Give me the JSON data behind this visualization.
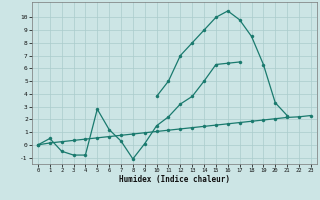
{
  "bg_color": "#cce5e5",
  "grid_color": "#aacccc",
  "line_color": "#1a7a6e",
  "xlabel": "Humidex (Indice chaleur)",
  "x_values": [
    0,
    1,
    2,
    3,
    4,
    5,
    6,
    7,
    8,
    9,
    10,
    11,
    12,
    13,
    14,
    15,
    16,
    17,
    18,
    19,
    20,
    21,
    22,
    23
  ],
  "line_straight_y": [
    0.0,
    0.15,
    0.25,
    0.35,
    0.45,
    0.55,
    0.65,
    0.75,
    0.85,
    0.95,
    1.05,
    1.15,
    1.25,
    1.35,
    1.45,
    1.55,
    1.65,
    1.75,
    1.85,
    1.95,
    2.05,
    2.15,
    2.2,
    2.3
  ],
  "line_mid_y": [
    0.0,
    0.5,
    -0.5,
    -0.8,
    -0.8,
    2.8,
    1.2,
    0.3,
    -1.1,
    0.1,
    1.5,
    2.2,
    3.2,
    3.8,
    5.0,
    6.3,
    6.4,
    6.5,
    null,
    null,
    null,
    null,
    null,
    null
  ],
  "line_top_y": [
    null,
    null,
    null,
    null,
    null,
    null,
    null,
    null,
    null,
    null,
    3.8,
    5.0,
    7.0,
    8.0,
    9.0,
    10.0,
    10.5,
    9.8,
    8.5,
    6.3,
    3.3,
    2.3,
    null,
    null
  ],
  "ylim": [
    -1.5,
    11.2
  ],
  "xlim": [
    -0.5,
    23.5
  ],
  "yticks": [
    -1,
    0,
    1,
    2,
    3,
    4,
    5,
    6,
    7,
    8,
    9,
    10
  ],
  "xticks": [
    0,
    1,
    2,
    3,
    4,
    5,
    6,
    7,
    8,
    9,
    10,
    11,
    12,
    13,
    14,
    15,
    16,
    17,
    18,
    19,
    20,
    21,
    22,
    23
  ]
}
